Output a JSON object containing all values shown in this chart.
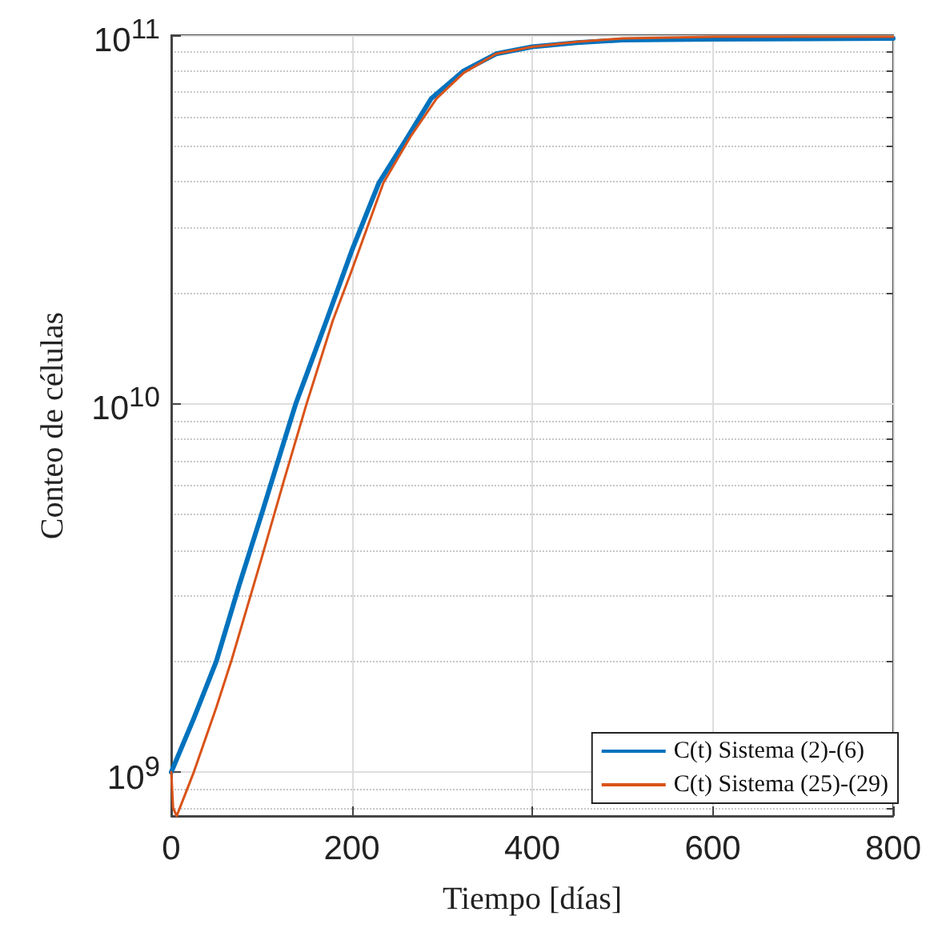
{
  "chart_data": {
    "type": "line",
    "xlabel": "Tiempo [días]",
    "ylabel": "Conteo de células",
    "log": "y",
    "grid": true,
    "legend": "bottom right",
    "line_style": "solid",
    "marker": "none",
    "xlim": [
      0,
      800
    ],
    "xticks": [
      0,
      200,
      400,
      600,
      800
    ],
    "ylim": [
      760000000.0,
      100000000000.0
    ],
    "yticks": [
      {
        "value": 800000000.0,
        "label": null
      },
      {
        "value": 900000000.0,
        "label": null
      },
      {
        "value": 1000000000.0,
        "label": "10$^{9}$"
      },
      {
        "value": 2000000000.0,
        "label": null
      },
      {
        "value": 3000000000.0,
        "label": null
      },
      {
        "value": 4000000000.0,
        "label": null
      },
      {
        "value": 5000000000.0,
        "label": null
      },
      {
        "value": 6000000000.0,
        "label": null
      },
      {
        "value": 7000000000.0,
        "label": null
      },
      {
        "value": 8000000000.0,
        "label": null
      },
      {
        "value": 9000000000.0,
        "label": null
      },
      {
        "value": 10000000000.0,
        "label": "10$^{10}$"
      },
      {
        "value": 20000000000.0,
        "label": null
      },
      {
        "value": 30000000000.0,
        "label": null
      },
      {
        "value": 40000000000.0,
        "label": null
      },
      {
        "value": 50000000000.0,
        "label": null
      },
      {
        "value": 60000000000.0,
        "label": null
      },
      {
        "value": 70000000000.0,
        "label": null
      },
      {
        "value": 80000000000.0,
        "label": null
      },
      {
        "value": 90000000000.0,
        "label": null
      },
      {
        "value": 100000000000.0,
        "label": "10$^{11}$"
      }
    ],
    "series": [
      {
        "name": "C(t) Sistema (2)-(6)",
        "color": "#0072bd",
        "x": [
          0,
          25,
          50,
          75,
          100,
          125,
          138,
          150,
          172,
          200,
          230,
          260,
          288,
          324,
          360,
          400,
          450,
          500,
          600,
          800
        ],
        "values": [
          1000000000.0,
          1400000000.0,
          2000000000.0,
          3200000000.0,
          5000000000.0,
          7900000000.0,
          10000000000.0,
          12000000000.0,
          16800000000.0,
          26000000000.0,
          39700000000.0,
          52000000000.0,
          67300000000.0,
          80000000000.0,
          89000000000.0,
          93000000000.0,
          95500000000.0,
          97000000000.0,
          97500000000.0,
          98000000000.0
        ]
      },
      {
        "name": "C(t) Sistema (25)-(29)",
        "color": "#d95319",
        "x": [
          0,
          2,
          6,
          25,
          50,
          67,
          100,
          125,
          150,
          179,
          200,
          235,
          265,
          294,
          324,
          360,
          400,
          450,
          500,
          600,
          800
        ],
        "values": [
          1000000000.0,
          800000000.0,
          760000000.0,
          1000000000.0,
          1500000000.0,
          2020000000.0,
          3800000000.0,
          6200000000.0,
          10000000000.0,
          16800000000.0,
          23000000000.0,
          39700000000.0,
          53000000000.0,
          67300000000.0,
          79000000000.0,
          89000000000.0,
          93000000000.0,
          96000000000.0,
          98000000000.0,
          99000000000.0,
          99000000000.0
        ]
      }
    ]
  }
}
